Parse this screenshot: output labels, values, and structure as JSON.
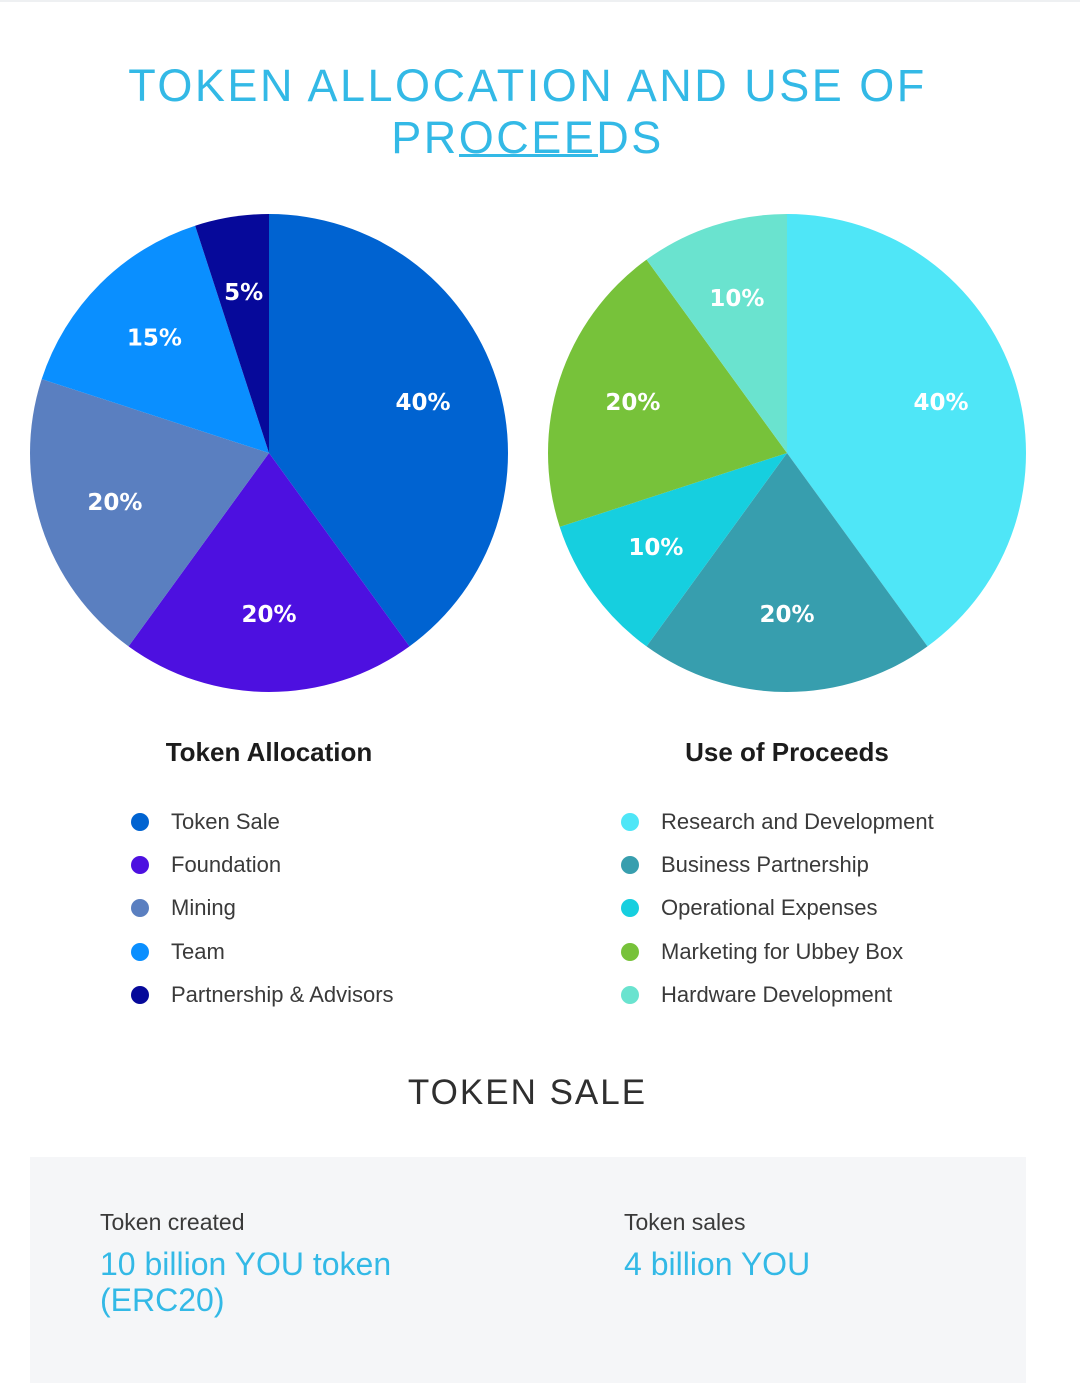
{
  "header": {
    "title": "TOKEN ALLOCATION AND USE OF PROCEEDS"
  },
  "chart_data": [
    {
      "type": "pie",
      "title": "Token Allocation",
      "categories": [
        "Token Sale",
        "Foundation",
        "Mining",
        "Team",
        "Partnership & Advisors"
      ],
      "values": [
        40,
        20,
        20,
        15,
        5
      ],
      "value_labels": [
        "40%",
        "20%",
        "20%",
        "15%",
        "5%"
      ],
      "colors": [
        "#0063d1",
        "#4d10e0",
        "#5a7fc0",
        "#0a8fff",
        "#06099a"
      ],
      "legend_position": "bottom"
    },
    {
      "type": "pie",
      "title": "Use of Proceeds",
      "categories": [
        "Research and Development",
        "Business Partnership",
        "Operational Expenses",
        "Marketing for Ubbey Box",
        "Hardware Development"
      ],
      "values": [
        40,
        20,
        10,
        20,
        10
      ],
      "value_labels": [
        "40%",
        "20%",
        "10%",
        "20%",
        "10%"
      ],
      "colors": [
        "#4fe6f7",
        "#379eae",
        "#16cfdf",
        "#77c23a",
        "#6ae3cf"
      ],
      "legend_position": "bottom"
    }
  ],
  "token_sale": {
    "title": "TOKEN SALE",
    "created_label": "Token created",
    "created_value_line1": "10 billion YOU token",
    "created_value_line2": "(ERC20)",
    "sales_label": "Token sales",
    "sales_value": "4 billion YOU"
  }
}
